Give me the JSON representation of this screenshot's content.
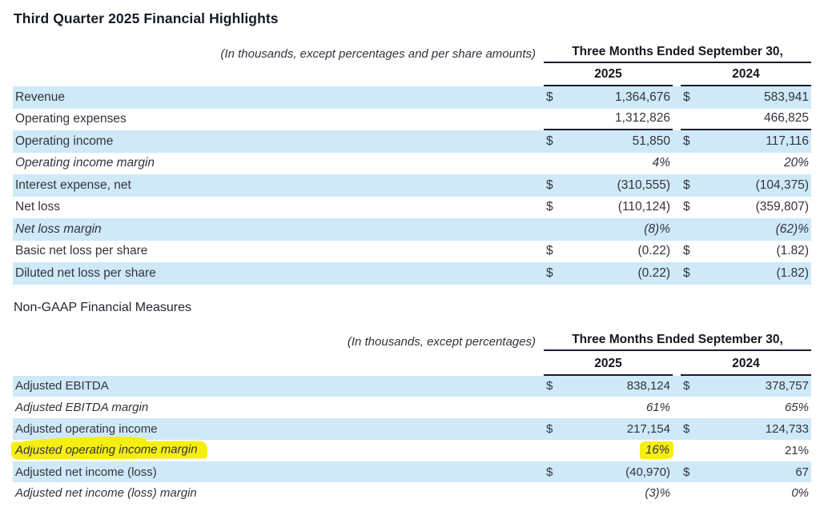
{
  "page": {
    "title": "Third Quarter 2025 Financial Highlights",
    "section_heading": "Non-GAAP Financial Measures"
  },
  "colors": {
    "row_shade_blue": "#cfe9f8",
    "highlight_yellow": "#f7ee11",
    "ink": "#32343d",
    "rule": "#1a1d27"
  },
  "tables": [
    {
      "note": "(In thousands, except percentages and per share amounts)",
      "period_header": "Three Months Ended September 30,",
      "years": [
        "2025",
        "2024"
      ],
      "rows": [
        {
          "label": "Revenue",
          "dollar": "$",
          "v2025": "1,364,676",
          "v2024": "583,941"
        },
        {
          "label": "Operating expenses",
          "dollar": "",
          "v2025": "1,312,826",
          "v2024": "466,825"
        },
        {
          "label": "Operating income",
          "dollar": "$",
          "v2025": "51,850",
          "v2024": "117,116"
        },
        {
          "label": "Operating income margin",
          "dollar": "",
          "v2025": "4%",
          "v2024": "20%"
        },
        {
          "label": "Interest expense, net",
          "dollar": "$",
          "v2025": "(310,555)",
          "v2024": "(104,375)"
        },
        {
          "label": "Net loss",
          "dollar": "$",
          "v2025": "(110,124)",
          "v2024": "(359,807)"
        },
        {
          "label": "Net loss margin",
          "dollar": "",
          "v2025": "(8)%",
          "v2024": "(62)%"
        },
        {
          "label": "Basic net loss per share",
          "dollar": "$",
          "v2025": "(0.22)",
          "v2024": "(1.82)"
        },
        {
          "label": "Diluted net loss per share",
          "dollar": "$",
          "v2025": "(0.22)",
          "v2024": "(1.82)"
        }
      ]
    },
    {
      "note": "(In thousands, except percentages)",
      "period_header": "Three Months Ended September 30,",
      "years": [
        "2025",
        "2024"
      ],
      "rows": [
        {
          "label": "Adjusted EBITDA",
          "dollar": "$",
          "v2025": "838,124",
          "v2024": "378,757"
        },
        {
          "label": "Adjusted EBITDA margin",
          "dollar": "",
          "v2025": "61%",
          "v2024": "65%"
        },
        {
          "label": "Adjusted operating income",
          "dollar": "$",
          "v2025": "217,154",
          "v2024": "124,733"
        },
        {
          "label": "Adjusted operating income margin",
          "dollar": "",
          "v2025": "16%",
          "v2024": "21%"
        },
        {
          "label": "Adjusted net income (loss)",
          "dollar": "$",
          "v2025": "(40,970)",
          "v2024": "67"
        },
        {
          "label": "Adjusted net income (loss) margin",
          "dollar": "",
          "v2025": "(3)%",
          "v2024": "0%"
        }
      ]
    }
  ]
}
